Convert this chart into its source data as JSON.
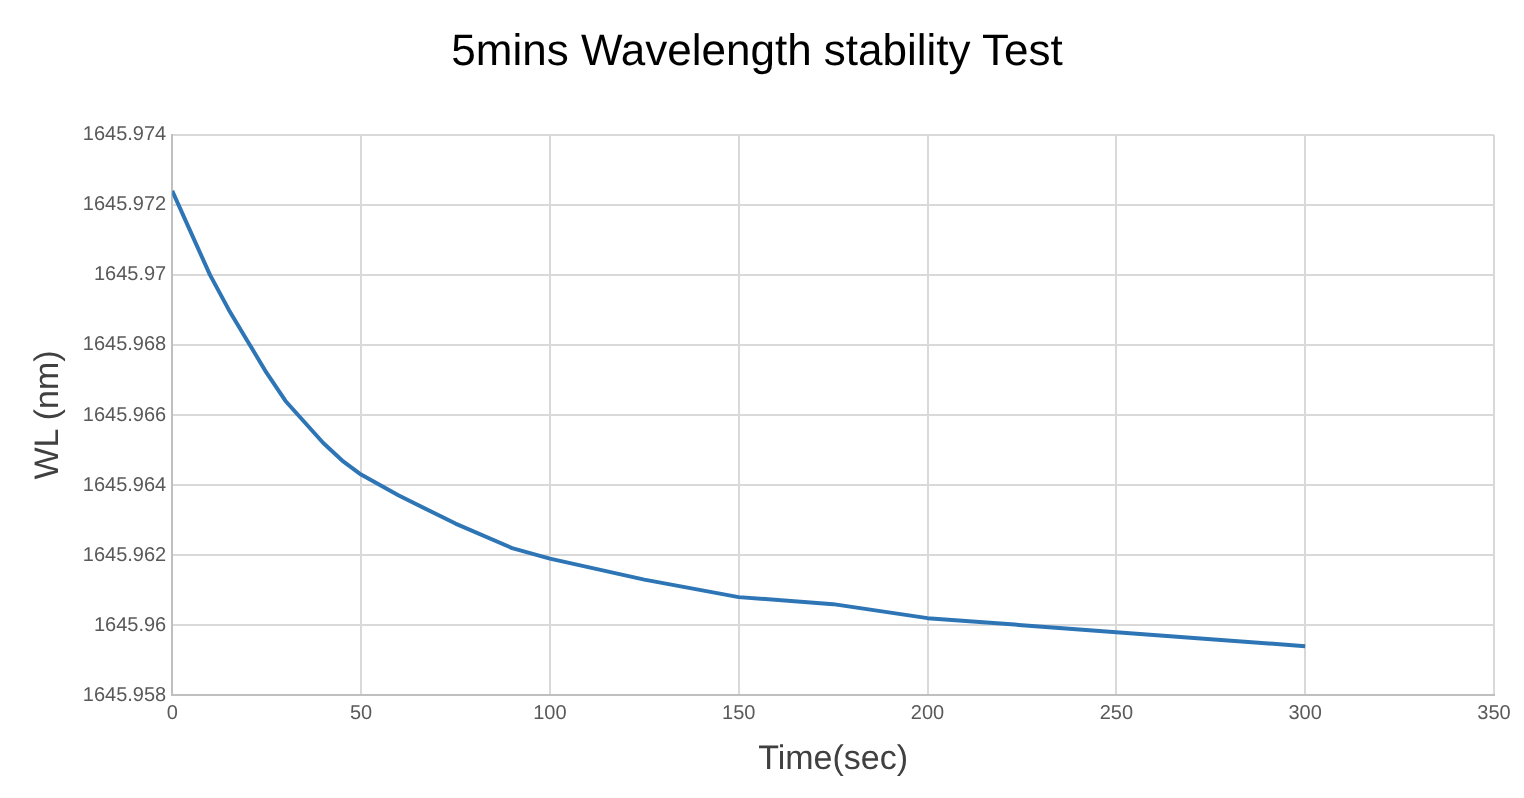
{
  "chart_data": {
    "type": "line",
    "title": "5mins Wavelength stability Test",
    "xlabel": "Time(sec)",
    "ylabel": "WL (nm)",
    "x": [
      0,
      5,
      10,
      15,
      20,
      25,
      30,
      35,
      40,
      45,
      50,
      60,
      75,
      90,
      100,
      125,
      150,
      175,
      200,
      225,
      250,
      275,
      300
    ],
    "series": [
      {
        "color": "#2e75b6",
        "values": [
          1645.9724,
          1645.9712,
          1645.97,
          1645.969,
          1645.9681,
          1645.9672,
          1645.9664,
          1645.9658,
          1645.9652,
          1645.9647,
          1645.9643,
          1645.9637,
          1645.9629,
          1645.9622,
          1645.9619,
          1645.9613,
          1645.9608,
          1645.9606,
          1645.9602,
          1645.96,
          1645.9598,
          1645.9596,
          1645.9594
        ]
      }
    ],
    "xlim": [
      0,
      350
    ],
    "xticks": [
      0,
      50,
      100,
      150,
      200,
      250,
      300,
      350
    ],
    "ylim": [
      1645.958,
      1645.974
    ],
    "yticks": [
      1645.958,
      1645.96,
      1645.962,
      1645.964,
      1645.966,
      1645.968,
      1645.97,
      1645.972,
      1645.974
    ],
    "grid": true,
    "legend": false,
    "marker": "none",
    "line_style": "solid"
  }
}
